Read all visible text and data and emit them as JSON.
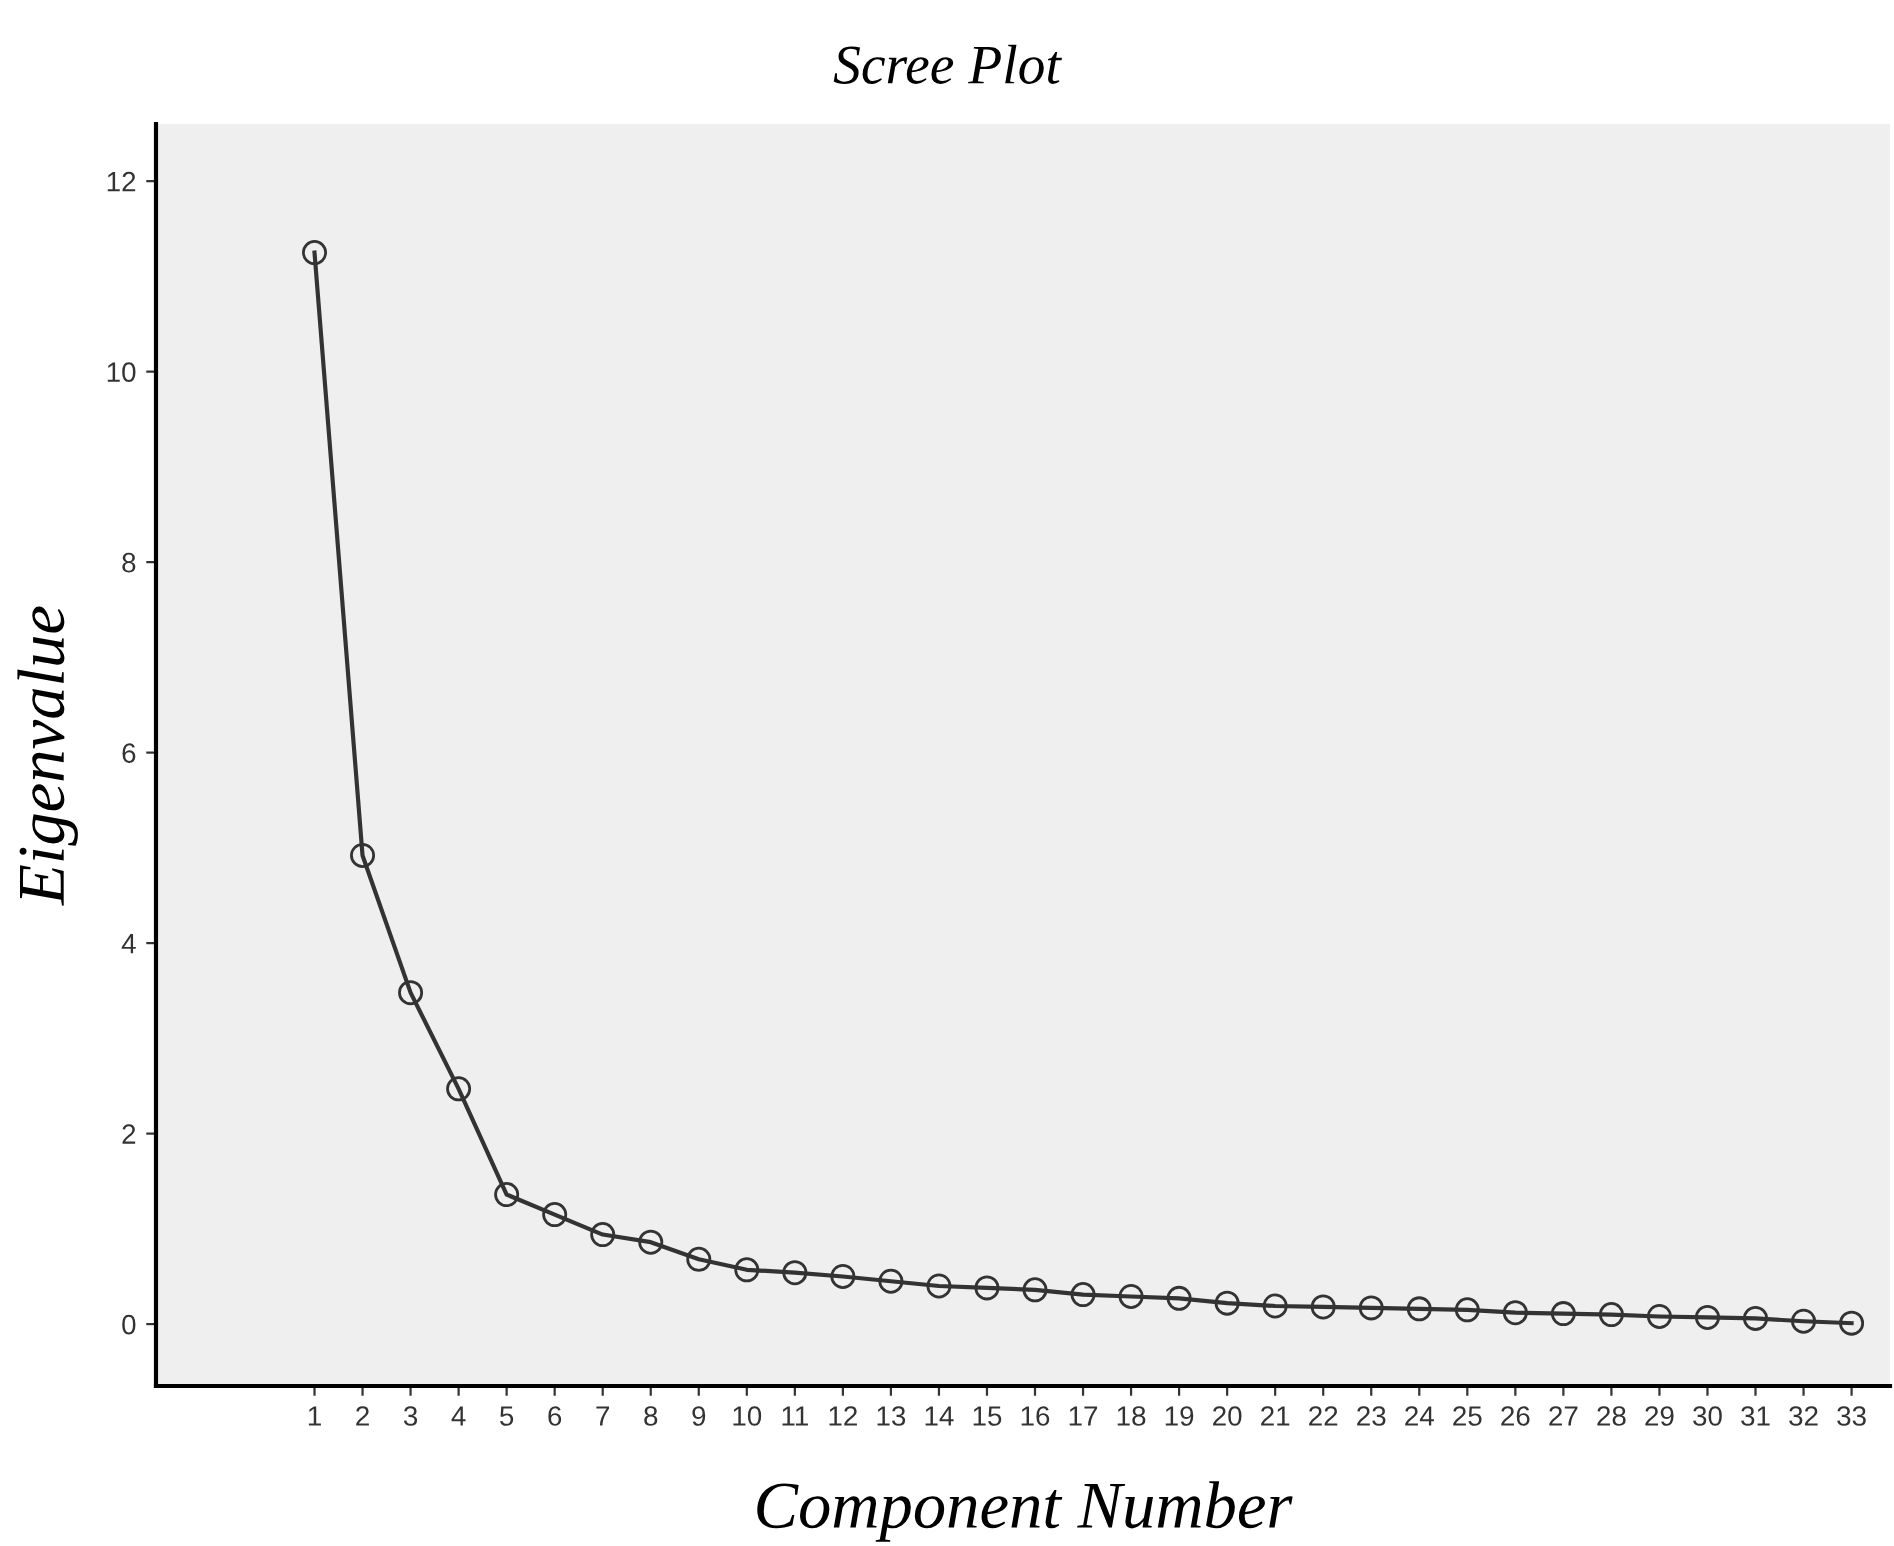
{
  "chart_data": {
    "type": "line",
    "title": "Scree Plot",
    "xlabel": "Component Number",
    "ylabel": "Eigenvalue",
    "categories": [
      "1",
      "2",
      "3",
      "4",
      "5",
      "6",
      "7",
      "8",
      "9",
      "10",
      "11",
      "12",
      "13",
      "14",
      "15",
      "16",
      "17",
      "18",
      "19",
      "20",
      "21",
      "22",
      "23",
      "24",
      "25",
      "26",
      "27",
      "28",
      "29",
      "30",
      "31",
      "32",
      "33"
    ],
    "series": [
      {
        "color": "#333333",
        "values": [
          11.25,
          4.92,
          3.48,
          2.47,
          1.36,
          1.15,
          0.94,
          0.86,
          0.68,
          0.57,
          0.54,
          0.5,
          0.45,
          0.4,
          0.38,
          0.36,
          0.31,
          0.29,
          0.27,
          0.22,
          0.19,
          0.18,
          0.17,
          0.16,
          0.15,
          0.12,
          0.11,
          0.1,
          0.08,
          0.07,
          0.06,
          0.03,
          0.01
        ]
      }
    ],
    "ylim": [
      -0.65,
      12.6
    ],
    "yticks": [
      0,
      2,
      4,
      6,
      8,
      10,
      12
    ],
    "grid": false,
    "legend": false,
    "marker": "circle",
    "line_style": "solid"
  }
}
